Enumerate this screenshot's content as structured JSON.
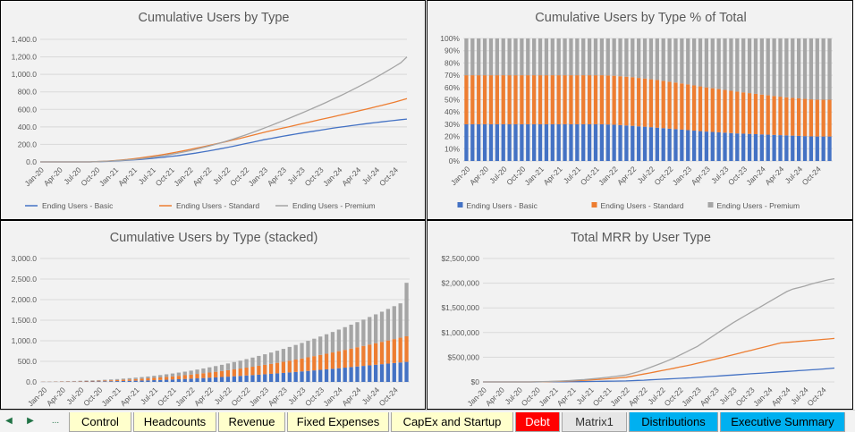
{
  "colors": {
    "basic": "#4472c4",
    "standard": "#ed7d31",
    "premium": "#a5a5a5",
    "grid": "#d9d9d9",
    "axis_text": "#595959",
    "title": "#595959"
  },
  "months": [
    "Jan-20",
    "Feb-20",
    "Mar-20",
    "Apr-20",
    "May-20",
    "Jun-20",
    "Jul-20",
    "Aug-20",
    "Sep-20",
    "Oct-20",
    "Nov-20",
    "Dec-20",
    "Jan-21",
    "Feb-21",
    "Mar-21",
    "Apr-21",
    "May-21",
    "Jun-21",
    "Jul-21",
    "Aug-21",
    "Sep-21",
    "Oct-21",
    "Nov-21",
    "Dec-21",
    "Jan-22",
    "Feb-22",
    "Mar-22",
    "Apr-22",
    "May-22",
    "Jun-22",
    "Jul-22",
    "Aug-22",
    "Sep-22",
    "Oct-22",
    "Nov-22",
    "Dec-22",
    "Jan-23",
    "Feb-23",
    "Mar-23",
    "Apr-23",
    "May-23",
    "Jun-23",
    "Jul-23",
    "Aug-23",
    "Sep-23",
    "Oct-23",
    "Nov-23",
    "Dec-23",
    "Jan-24",
    "Feb-24",
    "Mar-24",
    "Apr-24",
    "May-24",
    "Jun-24",
    "Jul-24",
    "Aug-24",
    "Sep-24",
    "Oct-24",
    "Nov-24",
    "Dec-24"
  ],
  "series_names": [
    "Ending Users - Basic",
    "Ending Users - Standard",
    "Ending Users - Premium"
  ],
  "chart_data": [
    {
      "type": "line",
      "title": "Cumulative Users by Type",
      "y_ticks": [
        "0.0",
        "200.0",
        "400.0",
        "600.0",
        "800.0",
        "1,000.0",
        "1,200.0",
        "1,400.0"
      ],
      "ylim": [
        0,
        1400
      ],
      "x_tick_labels": [
        "Jan-20",
        "Apr-20",
        "Jul-20",
        "Oct-20",
        "Jan-21",
        "Apr-21",
        "Jul-21",
        "Oct-21",
        "Jan-22",
        "Apr-22",
        "Jul-22",
        "Oct-22",
        "Jan-23",
        "Apr-23",
        "Jul-23",
        "Oct-23",
        "Jan-24",
        "Apr-24",
        "Jul-24",
        "Oct-24"
      ],
      "legend_position": "bottom",
      "series": [
        {
          "name": "Ending Users - Basic",
          "values": [
            0,
            0,
            0,
            0,
            0,
            0,
            0,
            0,
            0,
            2,
            4,
            7,
            10,
            14,
            18,
            23,
            28,
            34,
            40,
            47,
            54,
            62,
            70,
            80,
            90,
            100,
            112,
            124,
            137,
            150,
            164,
            178,
            193,
            208,
            223,
            238,
            253,
            266,
            279,
            292,
            305,
            317,
            329,
            340,
            351,
            362,
            373,
            384,
            394,
            404,
            414,
            423,
            432,
            441,
            450,
            458,
            466,
            474,
            482,
            490
          ]
        },
        {
          "name": "Ending Users - Standard",
          "values": [
            0,
            0,
            0,
            0,
            0,
            0,
            0,
            0,
            0,
            3,
            6,
            10,
            15,
            21,
            28,
            36,
            44,
            54,
            64,
            75,
            87,
            99,
            112,
            126,
            140,
            155,
            170,
            185,
            201,
            217,
            233,
            250,
            266,
            283,
            301,
            319,
            337,
            354,
            370,
            386,
            402,
            418,
            434,
            450,
            466,
            482,
            498,
            514,
            530,
            546,
            562,
            578,
            595,
            612,
            629,
            646,
            664,
            683,
            703,
            723
          ]
        },
        {
          "name": "Ending Users - Premium",
          "values": [
            0,
            0,
            0,
            0,
            0,
            0,
            0,
            0,
            0,
            3,
            6,
            9,
            13,
            17,
            22,
            28,
            35,
            43,
            52,
            62,
            73,
            85,
            98,
            112,
            127,
            143,
            160,
            178,
            197,
            217,
            238,
            260,
            283,
            307,
            332,
            358,
            385,
            412,
            440,
            468,
            497,
            526,
            556,
            586,
            617,
            648,
            680,
            713,
            746,
            780,
            815,
            851,
            888,
            926,
            965,
            1005,
            1046,
            1088,
            1132,
            1200
          ]
        }
      ]
    },
    {
      "type": "bar",
      "stacked": "percent",
      "title": "Cumulative Users by Type % of Total",
      "y_ticks": [
        "0%",
        "10%",
        "20%",
        "30%",
        "40%",
        "50%",
        "60%",
        "70%",
        "80%",
        "90%",
        "100%"
      ],
      "ylim": [
        0,
        100
      ],
      "x_tick_labels": [
        "Jan-20",
        "Apr-20",
        "Jul-20",
        "Oct-20",
        "Jan-21",
        "Apr-21",
        "Jul-21",
        "Oct-21",
        "Jan-22",
        "Apr-22",
        "Jul-22",
        "Oct-22",
        "Jan-23",
        "Apr-23",
        "Jul-23",
        "Oct-23",
        "Jan-24",
        "Apr-24",
        "Jul-24",
        "Oct-24"
      ],
      "legend_position": "bottom",
      "series": [
        {
          "name": "Ending Users - Basic",
          "values": [
            30,
            30,
            30,
            30,
            30,
            30,
            30,
            30,
            30,
            30,
            30,
            30,
            30,
            30,
            30,
            30,
            30,
            30,
            30,
            30,
            30,
            30,
            30,
            29.8,
            29.6,
            29.3,
            29,
            28.7,
            28.3,
            28,
            27.6,
            27.2,
            26.8,
            26.4,
            26,
            25.6,
            25.2,
            24.8,
            24.4,
            24,
            23.7,
            23.4,
            23.1,
            22.8,
            22.5,
            22.3,
            22.1,
            21.9,
            21.7,
            21.5,
            21.3,
            21.1,
            20.9,
            20.7,
            20.5,
            20.3,
            20.1,
            20,
            20,
            20
          ]
        },
        {
          "name": "Ending Users - Standard",
          "values": [
            40,
            40,
            40,
            40,
            40,
            40,
            40,
            40,
            40,
            40,
            40,
            40,
            40,
            40,
            40,
            40,
            40,
            40,
            40,
            40,
            40,
            40,
            40,
            40,
            40,
            39.9,
            39.8,
            39.7,
            39.5,
            39.3,
            39.1,
            38.9,
            38.6,
            38.3,
            38,
            37.7,
            37.3,
            36.9,
            36.5,
            36.1,
            35.7,
            35.3,
            34.9,
            34.5,
            34.1,
            33.7,
            33.3,
            32.9,
            32.5,
            32.1,
            31.7,
            31.4,
            31.1,
            30.8,
            30.6,
            30.4,
            30.2,
            30.1,
            30,
            30
          ]
        },
        {
          "name": "Ending Users - Premium",
          "values": [
            30,
            30,
            30,
            30,
            30,
            30,
            30,
            30,
            30,
            30,
            30,
            30,
            30,
            30,
            30,
            30,
            30,
            30,
            30,
            30,
            30,
            30,
            30,
            30.2,
            30.4,
            30.8,
            31.2,
            31.6,
            32.2,
            32.7,
            33.3,
            33.9,
            34.6,
            35.3,
            36,
            36.7,
            37.5,
            38.3,
            39.1,
            39.9,
            40.6,
            41.3,
            42,
            42.7,
            43.4,
            44,
            44.6,
            45.2,
            45.8,
            46.4,
            47,
            47.5,
            48,
            48.5,
            48.9,
            49.3,
            49.7,
            49.9,
            50,
            50
          ]
        }
      ]
    },
    {
      "type": "bar",
      "stacked": "normal",
      "title": "Cumulative Users by Type (stacked)",
      "y_ticks": [
        "0.0",
        "500.0",
        "1,000.0",
        "1,500.0",
        "2,000.0",
        "2,500.0",
        "3,000.0"
      ],
      "ylim": [
        0,
        3000
      ],
      "x_tick_labels": [
        "Jan-20",
        "Apr-20",
        "Jul-20",
        "Oct-20",
        "Jan-21",
        "Apr-21",
        "Jul-21",
        "Oct-21",
        "Jan-22",
        "Apr-22",
        "Jul-22",
        "Oct-22",
        "Jan-23",
        "Apr-23",
        "Jul-23",
        "Oct-23",
        "Jan-24",
        "Apr-24",
        "Jul-24",
        "Oct-24"
      ],
      "series": [
        {
          "name": "Ending Users - Basic",
          "values": [
            3,
            3,
            4,
            5,
            6,
            7,
            8,
            10,
            11,
            13,
            15,
            17,
            20,
            23,
            26,
            30,
            34,
            38,
            43,
            48,
            53,
            59,
            65,
            72,
            79,
            86,
            94,
            102,
            110,
            119,
            128,
            137,
            146,
            156,
            166,
            176,
            186,
            197,
            208,
            219,
            231,
            243,
            255,
            267,
            280,
            293,
            306,
            319,
            333,
            347,
            361,
            375,
            389,
            403,
            417,
            431,
            445,
            459,
            473,
            487
          ]
        },
        {
          "name": "Ending Users - Standard",
          "values": [
            4,
            4,
            5,
            6,
            8,
            9,
            11,
            13,
            15,
            17,
            20,
            23,
            26,
            30,
            34,
            39,
            44,
            49,
            55,
            61,
            68,
            75,
            83,
            91,
            99,
            108,
            117,
            126,
            136,
            146,
            157,
            168,
            179,
            191,
            203,
            216,
            229,
            242,
            256,
            270,
            285,
            300,
            315,
            331,
            347,
            363,
            380,
            397,
            414,
            432,
            450,
            468,
            486,
            505,
            524,
            543,
            562,
            582,
            602,
            622
          ]
        },
        {
          "name": "Ending Users - Premium",
          "values": [
            3,
            3,
            4,
            5,
            6,
            7,
            9,
            11,
            13,
            15,
            17,
            20,
            23,
            27,
            31,
            35,
            40,
            45,
            51,
            57,
            64,
            71,
            79,
            87,
            96,
            106,
            116,
            127,
            139,
            151,
            164,
            178,
            192,
            207,
            223,
            240,
            257,
            275,
            294,
            314,
            334,
            355,
            377,
            400,
            423,
            447,
            472,
            498,
            525,
            552,
            580,
            609,
            639,
            670,
            701,
            733,
            766,
            800,
            835,
            1300
          ]
        }
      ]
    },
    {
      "type": "line",
      "title": "Total MRR by User Type",
      "y_ticks": [
        "$0",
        "$500,000",
        "$1,000,000",
        "$1,500,000",
        "$2,000,000",
        "$2,500,000"
      ],
      "ylim": [
        0,
        2500000
      ],
      "x_tick_labels": [
        "Jan-20",
        "Apr-20",
        "Jul-20",
        "Oct-20",
        "Jan-21",
        "Apr-21",
        "Jul-21",
        "Oct-21",
        "Jan-22",
        "Apr-22",
        "Jul-22",
        "Oct-22",
        "Jan-23",
        "Apr-23",
        "Jul-23",
        "Oct-23",
        "Jan-24",
        "Apr-24",
        "Jul-24",
        "Oct-24"
      ],
      "series": [
        {
          "name": "Ending Users - Basic",
          "values": [
            0,
            0,
            0,
            0,
            0,
            0,
            0,
            0,
            0,
            500,
            1000,
            1500,
            2000,
            3000,
            4000,
            5000,
            6000,
            7500,
            9000,
            10500,
            12000,
            14000,
            16000,
            18000,
            20000,
            25000,
            30000,
            35000,
            42000,
            48000,
            54000,
            60000,
            66000,
            72000,
            78000,
            84000,
            92000,
            100000,
            108000,
            116000,
            124000,
            132000,
            140000,
            148000,
            156000,
            164000,
            172000,
            180000,
            188000,
            196000,
            204000,
            212000,
            220000,
            228000,
            236000,
            244000,
            252000,
            260000,
            270000,
            280000
          ]
        },
        {
          "name": "Ending Users - Standard",
          "values": [
            0,
            0,
            0,
            0,
            0,
            0,
            0,
            0,
            0,
            2000,
            4000,
            6000,
            9000,
            13000,
            17000,
            22000,
            27000,
            33000,
            40000,
            47000,
            55000,
            64000,
            73000,
            83000,
            94000,
            115000,
            137000,
            160000,
            182000,
            205000,
            228000,
            252000,
            276000,
            300000,
            324000,
            350000,
            378000,
            406000,
            434000,
            462000,
            490000,
            520000,
            550000,
            580000,
            610000,
            640000,
            670000,
            700000,
            730000,
            760000,
            790000,
            800000,
            810000,
            820000,
            830000,
            840000,
            850000,
            860000,
            870000,
            880000
          ]
        },
        {
          "name": "Ending Users - Premium",
          "values": [
            0,
            0,
            0,
            0,
            0,
            0,
            0,
            0,
            0,
            3000,
            6000,
            9000,
            13000,
            18000,
            24000,
            31000,
            39000,
            48000,
            58000,
            69000,
            81000,
            94000,
            108000,
            123000,
            139000,
            170000,
            205000,
            245000,
            290000,
            335000,
            380000,
            430000,
            480000,
            540000,
            600000,
            660000,
            720000,
            800000,
            880000,
            960000,
            1040000,
            1120000,
            1200000,
            1270000,
            1340000,
            1410000,
            1480000,
            1550000,
            1620000,
            1690000,
            1760000,
            1830000,
            1880000,
            1910000,
            1940000,
            1980000,
            2010000,
            2040000,
            2070000,
            2090000
          ]
        }
      ]
    }
  ],
  "tabs": [
    {
      "label": "Control",
      "bg": "#ffffcc"
    },
    {
      "label": "Headcounts",
      "bg": "#ffffcc"
    },
    {
      "label": "Revenue",
      "bg": "#ffffcc"
    },
    {
      "label": "Fixed Expenses",
      "bg": "#ffffcc"
    },
    {
      "label": "CapEx and Startup",
      "bg": "#ffffcc"
    },
    {
      "label": "Debt",
      "bg": "#ff0000"
    },
    {
      "label": "Matrix1",
      "bg": "#e6e6e6"
    },
    {
      "label": "Distributions",
      "bg": "#00b0f0"
    },
    {
      "label": "Executive Summary",
      "bg": "#00b0f0"
    }
  ],
  "tab_nav": {
    "prev": "◀",
    "next": "▶",
    "more": "..."
  }
}
